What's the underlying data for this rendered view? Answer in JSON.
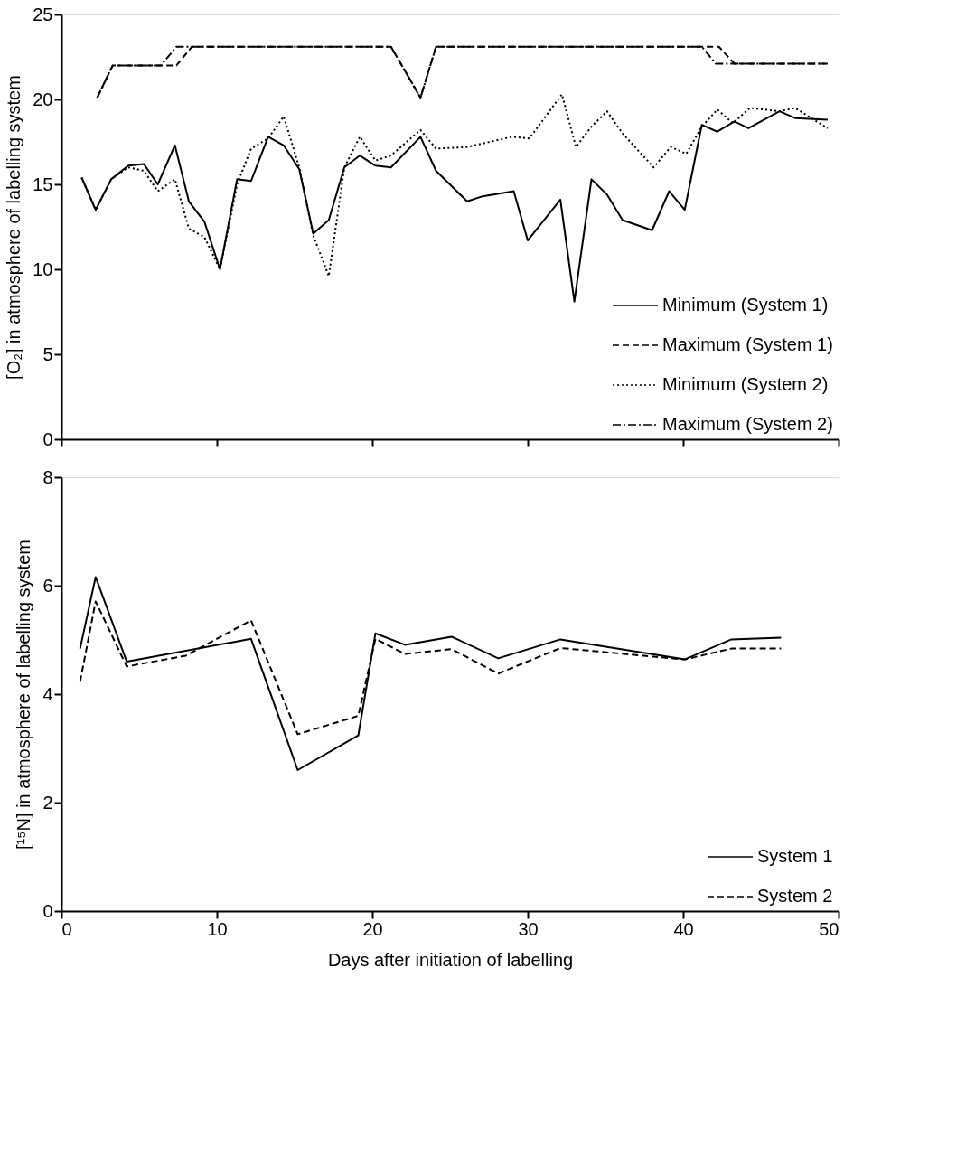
{
  "chart_data": [
    {
      "type": "line",
      "ylabel": "[O₂] in atmosphere of labelling system",
      "xlim": [
        0,
        50
      ],
      "xticks": [
        0,
        10,
        20,
        30,
        40,
        50
      ],
      "ylim": [
        0,
        25
      ],
      "yticks": [
        0,
        5,
        10,
        15,
        20,
        25
      ],
      "tick_labels": "y",
      "grid": false,
      "legend": "bottom right",
      "marker": "none",
      "series": [
        {
          "name": "Minimum (System 1)",
          "color": "#000000",
          "line_style": "solid",
          "x": [
            1.3,
            2.2,
            3.2,
            4.3,
            5.3,
            6.2,
            7.3,
            8.2,
            9.2,
            10.2,
            11.3,
            12.2,
            13.3,
            14.3,
            15.3,
            16.2,
            17.2,
            18.2,
            19.2,
            20.2,
            21.2,
            23.1,
            24.1,
            26.1,
            27.1,
            29.1,
            30.0,
            32.1,
            33.0,
            34.1,
            35.1,
            36.1,
            38.0,
            39.1,
            40.1,
            41.2,
            42.2,
            43.3,
            44.2,
            46.2,
            47.2,
            49.3
          ],
          "values": [
            15.4,
            13.5,
            15.3,
            16.1,
            16.2,
            15.0,
            17.3,
            14.0,
            12.8,
            10.0,
            15.3,
            15.2,
            17.8,
            17.3,
            15.9,
            12.1,
            12.9,
            16.0,
            16.7,
            16.1,
            16.0,
            17.8,
            15.8,
            14.0,
            14.3,
            14.6,
            11.7,
            14.1,
            8.1,
            15.3,
            14.4,
            12.9,
            12.3,
            14.6,
            13.5,
            18.5,
            18.1,
            18.7,
            18.3,
            19.3,
            18.9,
            18.8
          ]
        },
        {
          "name": "Maximum (System 1)",
          "color": "#000000",
          "line_style": "dashed",
          "x": [
            2.3,
            3.3,
            7.4,
            8.4,
            21.2,
            23.1,
            24.1,
            42.3,
            43.3,
            49.3
          ],
          "values": [
            20.1,
            22.0,
            22.0,
            23.1,
            23.1,
            20.1,
            23.1,
            23.1,
            22.1,
            22.1
          ]
        },
        {
          "name": "Minimum (System 2)",
          "color": "#000000",
          "line_style": "dotted",
          "x": [
            1.3,
            2.2,
            3.2,
            4.3,
            5.3,
            6.2,
            7.3,
            8.2,
            9.2,
            10.2,
            11.3,
            12.2,
            13.3,
            14.3,
            15.3,
            16.2,
            17.2,
            18.2,
            19.2,
            20.2,
            21.2,
            23.1,
            24.1,
            26.1,
            29.0,
            30.1,
            32.2,
            33.1,
            34.1,
            35.1,
            36.1,
            38.1,
            39.2,
            40.2,
            41.2,
            42.2,
            43.2,
            44.3,
            46.2,
            47.2,
            49.3
          ],
          "values": [
            15.4,
            13.5,
            15.3,
            16.0,
            15.8,
            14.6,
            15.3,
            12.4,
            11.9,
            10.0,
            15.0,
            17.1,
            17.7,
            19.0,
            16.0,
            12.0,
            9.6,
            16.0,
            17.8,
            16.4,
            16.7,
            18.2,
            17.1,
            17.2,
            17.8,
            17.7,
            20.3,
            17.2,
            18.4,
            19.3,
            18.0,
            16.0,
            17.2,
            16.8,
            18.4,
            19.4,
            18.6,
            19.5,
            19.3,
            19.5,
            18.3
          ]
        },
        {
          "name": "Maximum (System 2)",
          "color": "#000000",
          "line_style": "dashdot",
          "x": [
            2.3,
            3.3,
            6.4,
            7.4,
            21.2,
            23.1,
            24.1,
            41.2,
            42.1,
            49.3
          ],
          "values": [
            20.1,
            22.0,
            22.0,
            23.1,
            23.1,
            20.1,
            23.1,
            23.1,
            22.1,
            22.1
          ]
        }
      ]
    },
    {
      "type": "line",
      "ylabel": "[¹⁵N] in atmosphere of labelling system",
      "xlabel": "Days after initiation of labelling",
      "xlim": [
        0,
        50
      ],
      "xticks": [
        0,
        10,
        20,
        30,
        40,
        50
      ],
      "ylim": [
        0,
        8
      ],
      "yticks": [
        0,
        2,
        4,
        6,
        8
      ],
      "grid": false,
      "legend": "bottom right",
      "marker": "none",
      "series": [
        {
          "name": "System 1",
          "color": "#000000",
          "line_style": "solid",
          "x": [
            1.2,
            2.2,
            4.2,
            12.2,
            15.2,
            19.1,
            20.2,
            22.1,
            25.1,
            28.1,
            32.1,
            40.1,
            43.1,
            46.3
          ],
          "values": [
            4.84,
            6.16,
            4.6,
            5.02,
            2.6,
            3.24,
            5.12,
            4.91,
            5.06,
            4.66,
            5.01,
            4.64,
            5.01,
            5.04
          ]
        },
        {
          "name": "System 2",
          "color": "#000000",
          "line_style": "dashed",
          "x": [
            1.2,
            2.2,
            4.2,
            8.0,
            12.2,
            15.2,
            19.1,
            20.2,
            22.1,
            25.1,
            28.1,
            32.1,
            40.1,
            43.1,
            46.3
          ],
          "values": [
            4.23,
            5.71,
            4.51,
            4.71,
            5.36,
            3.26,
            3.6,
            5.02,
            4.74,
            4.83,
            4.38,
            4.85,
            4.64,
            4.84,
            4.84
          ]
        }
      ]
    }
  ]
}
